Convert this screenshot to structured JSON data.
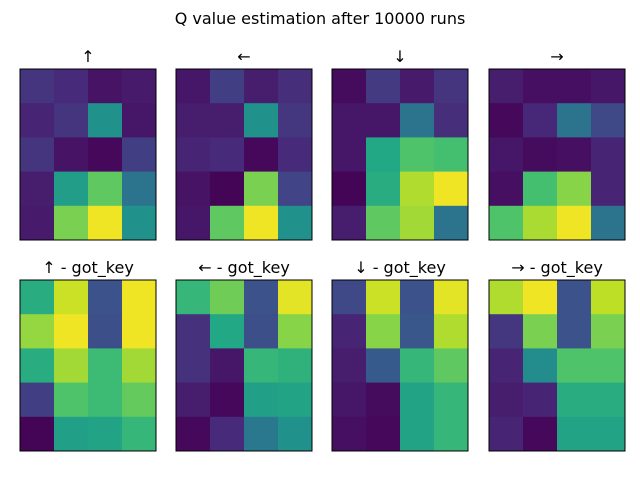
{
  "figure": {
    "title": "Q value estimation after 10000 runs"
  },
  "chart_data": [
    {
      "type": "heatmap",
      "title": "↑",
      "colormap": "viridis",
      "colormap_range": [
        0,
        1
      ],
      "values": [
        [
          0.15,
          0.12,
          0.05,
          0.07
        ],
        [
          0.1,
          0.15,
          0.5,
          0.06
        ],
        [
          0.15,
          0.05,
          0.02,
          0.18
        ],
        [
          0.08,
          0.55,
          0.75,
          0.38
        ],
        [
          0.07,
          0.8,
          0.98,
          0.5
        ]
      ]
    },
    {
      "type": "heatmap",
      "title": "←",
      "colormap": "viridis",
      "colormap_range": [
        0,
        1
      ],
      "values": [
        [
          0.06,
          0.18,
          0.08,
          0.13
        ],
        [
          0.08,
          0.08,
          0.5,
          0.16
        ],
        [
          0.1,
          0.12,
          0.02,
          0.12
        ],
        [
          0.05,
          0.01,
          0.8,
          0.2
        ],
        [
          0.06,
          0.75,
          0.98,
          0.5
        ]
      ]
    },
    {
      "type": "heatmap",
      "title": "↓",
      "colormap": "viridis",
      "colormap_range": [
        0,
        1
      ],
      "values": [
        [
          0.03,
          0.17,
          0.07,
          0.15
        ],
        [
          0.06,
          0.06,
          0.38,
          0.13
        ],
        [
          0.06,
          0.6,
          0.72,
          0.7
        ],
        [
          0.01,
          0.62,
          0.88,
          0.98
        ],
        [
          0.08,
          0.75,
          0.86,
          0.38
        ]
      ]
    },
    {
      "type": "heatmap",
      "title": "→",
      "colormap": "viridis",
      "colormap_range": [
        0,
        1
      ],
      "values": [
        [
          0.08,
          0.04,
          0.04,
          0.06
        ],
        [
          0.02,
          0.11,
          0.38,
          0.22
        ],
        [
          0.06,
          0.03,
          0.04,
          0.1
        ],
        [
          0.04,
          0.7,
          0.82,
          0.1
        ],
        [
          0.72,
          0.87,
          0.98,
          0.38
        ]
      ]
    },
    {
      "type": "heatmap",
      "title": "↑ - got_key",
      "colormap": "viridis",
      "colormap_range": [
        0,
        1
      ],
      "values": [
        [
          0.62,
          0.92,
          0.25,
          0.98
        ],
        [
          0.84,
          0.98,
          0.24,
          0.98
        ],
        [
          0.62,
          0.86,
          0.68,
          0.86
        ],
        [
          0.18,
          0.72,
          0.68,
          0.76
        ],
        [
          0.01,
          0.56,
          0.58,
          0.66
        ]
      ]
    },
    {
      "type": "heatmap",
      "title": "← - got_key",
      "colormap": "viridis",
      "colormap_range": [
        0,
        1
      ],
      "values": [
        [
          0.66,
          0.78,
          0.25,
          0.96
        ],
        [
          0.14,
          0.6,
          0.24,
          0.82
        ],
        [
          0.14,
          0.06,
          0.66,
          0.64
        ],
        [
          0.08,
          0.02,
          0.56,
          0.58
        ],
        [
          0.02,
          0.12,
          0.4,
          0.5
        ]
      ]
    },
    {
      "type": "heatmap",
      "title": "↓ - got_key",
      "colormap": "viridis",
      "colormap_range": [
        0,
        1
      ],
      "values": [
        [
          0.22,
          0.92,
          0.25,
          0.96
        ],
        [
          0.1,
          0.82,
          0.27,
          0.88
        ],
        [
          0.08,
          0.28,
          0.66,
          0.75
        ],
        [
          0.06,
          0.03,
          0.58,
          0.66
        ],
        [
          0.04,
          0.02,
          0.58,
          0.66
        ]
      ]
    },
    {
      "type": "heatmap",
      "title": "→ - got_key",
      "colormap": "viridis",
      "colormap_range": [
        0,
        1
      ],
      "values": [
        [
          0.88,
          0.98,
          0.25,
          0.9
        ],
        [
          0.16,
          0.8,
          0.25,
          0.8
        ],
        [
          0.1,
          0.48,
          0.72,
          0.72
        ],
        [
          0.08,
          0.1,
          0.62,
          0.62
        ],
        [
          0.1,
          0.02,
          0.58,
          0.58
        ]
      ]
    }
  ]
}
